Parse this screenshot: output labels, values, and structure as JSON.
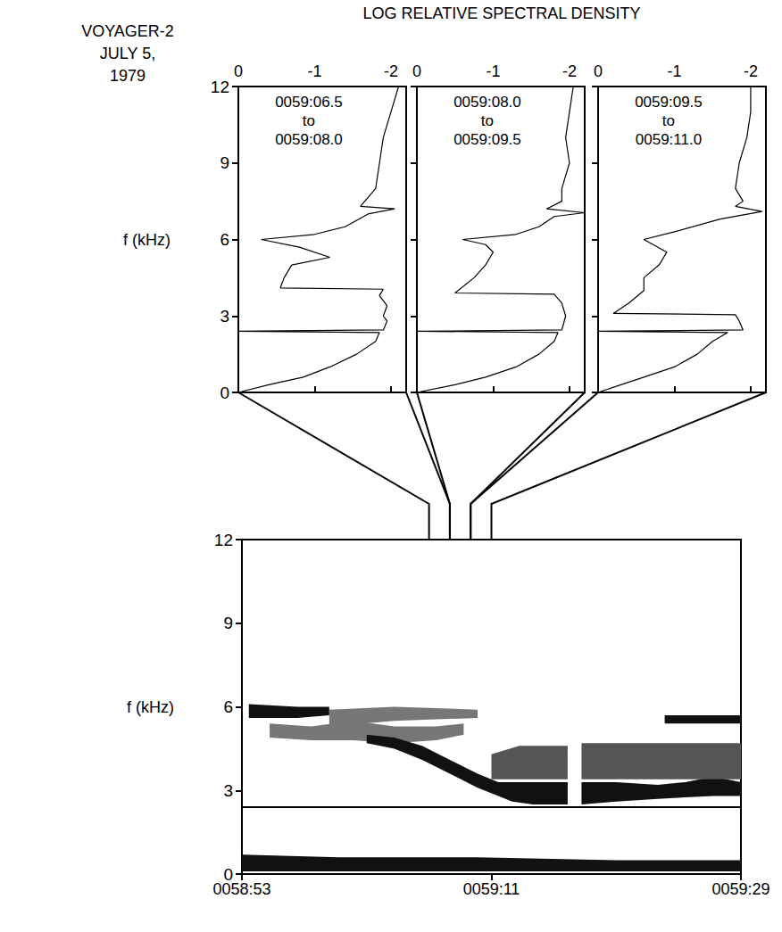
{
  "header": {
    "lines": [
      "VOYAGER-2",
      "JULY 5,",
      "1979"
    ],
    "x_label": "LOG RELATIVE SPECTRAL DENSITY"
  },
  "chart_data": [
    {
      "type": "line",
      "label": [
        "0059:06.5",
        "to",
        "0059:08.0"
      ],
      "interval": [
        66.5,
        68.0
      ],
      "color": "#000000",
      "x": [
        0,
        -0.4,
        -0.85,
        -1.2,
        -1.55,
        -1.8,
        -1.85,
        0,
        -1.9,
        -1.95,
        -1.9,
        -1.95,
        -1.85,
        -1.9,
        -0.55,
        -0.6,
        -0.7,
        -1.2,
        -0.8,
        -0.3,
        -1.0,
        -1.4,
        -1.7,
        -2.05,
        -1.6,
        -1.8,
        -1.85,
        -1.9,
        -2.0,
        -2.1
      ],
      "y": [
        0,
        0.3,
        0.6,
        1.0,
        1.5,
        2.0,
        2.35,
        2.4,
        2.45,
        2.8,
        3.0,
        3.4,
        3.8,
        4.05,
        4.1,
        4.5,
        5.0,
        5.3,
        5.7,
        6.0,
        6.2,
        6.5,
        7.0,
        7.2,
        7.3,
        8.0,
        9.0,
        10.0,
        11.0,
        12.0
      ],
      "xlim": [
        0,
        -2.2
      ],
      "xticks": [
        0,
        -1,
        -2
      ],
      "ylim": [
        0,
        12
      ],
      "yticks": [
        0,
        3,
        6,
        9,
        12
      ],
      "y_label": "f (kHz)",
      "tick_labels": true
    },
    {
      "type": "line",
      "label": [
        "0059:08.0",
        "to",
        "0059:09.5"
      ],
      "interval": [
        68.0,
        69.5
      ],
      "color": "#000000",
      "x": [
        0,
        -0.5,
        -0.9,
        -1.3,
        -1.6,
        -1.8,
        -1.85,
        0,
        -1.9,
        -1.95,
        -1.9,
        -1.8,
        -0.5,
        -0.75,
        -0.9,
        -1.0,
        -0.9,
        -0.6,
        -1.3,
        -1.6,
        -1.8,
        -2.2,
        -1.7,
        -1.9,
        -1.9,
        -2.0,
        -1.95,
        -2.0,
        -2.05
      ],
      "y": [
        0,
        0.3,
        0.6,
        1.0,
        1.5,
        2.0,
        2.35,
        2.4,
        2.45,
        3.0,
        3.5,
        3.85,
        3.9,
        4.5,
        5.0,
        5.5,
        5.8,
        6.0,
        6.2,
        6.5,
        6.9,
        7.05,
        7.2,
        7.5,
        8.0,
        9.0,
        10.0,
        11.0,
        12.0
      ],
      "xlim": [
        0,
        -2.2
      ],
      "xticks": [
        0,
        -1,
        -2
      ],
      "ylim": [
        0,
        12
      ],
      "yticks": [
        0,
        3,
        6,
        9,
        12
      ],
      "tick_labels": "x"
    },
    {
      "type": "line",
      "label": [
        "0059:09.5",
        "to",
        "0059:11.0"
      ],
      "interval": [
        69.5,
        71.0
      ],
      "color": "#000000",
      "x": [
        0,
        -0.3,
        -0.6,
        -1.0,
        -1.3,
        -1.5,
        -1.7,
        0,
        -1.9,
        -1.85,
        -1.8,
        -0.2,
        -0.4,
        -0.6,
        -0.6,
        -0.8,
        -0.9,
        -0.6,
        -1.0,
        -1.6,
        -2.15,
        -1.8,
        -1.9,
        -1.8,
        -1.85,
        -1.95,
        -2.0,
        -2.0
      ],
      "y": [
        0,
        0.3,
        0.6,
        1.0,
        1.5,
        2.0,
        2.35,
        2.4,
        2.45,
        2.8,
        3.05,
        3.1,
        3.5,
        4.0,
        4.5,
        5.0,
        5.5,
        6.0,
        6.3,
        6.8,
        7.1,
        7.3,
        7.5,
        8.0,
        9.0,
        10.0,
        11.0,
        12.0
      ],
      "xlim": [
        0,
        -2.2
      ],
      "xticks": [
        0,
        -1,
        -2
      ],
      "ylim": [
        0,
        12
      ],
      "yticks": [
        0,
        3,
        6,
        9,
        12
      ],
      "tick_labels": "x"
    },
    {
      "type": "spectrogram",
      "y_label": "f (kHz)",
      "xlim": [
        53,
        89
      ],
      "xticks": [
        {
          "value": 53,
          "label": "0058:53"
        },
        {
          "value": 71,
          "label": "0059:11"
        },
        {
          "value": 89,
          "label": "0059:29"
        }
      ],
      "ylim": [
        0,
        12
      ],
      "yticks": [
        0,
        3,
        6,
        9,
        12
      ],
      "bands": [
        {
          "time": [
            53,
            60,
            70,
            80,
            89
          ],
          "low": [
            0.1,
            0.1,
            0.1,
            0.1,
            0.1
          ],
          "high": [
            0.7,
            0.6,
            0.6,
            0.5,
            0.5
          ],
          "color": "#111111"
        },
        {
          "time": [
            53.5,
            57,
            59.3
          ],
          "low": [
            5.6,
            5.6,
            5.7
          ],
          "high": [
            6.1,
            6.0,
            6.0
          ],
          "color": "#111111"
        },
        {
          "time": [
            55,
            58,
            61,
            64,
            67,
            69
          ],
          "low": [
            4.9,
            4.8,
            4.8,
            4.7,
            4.8,
            5.0
          ],
          "high": [
            5.4,
            5.3,
            5.5,
            5.3,
            5.3,
            5.4
          ],
          "color": "#777777"
        },
        {
          "time": [
            59.3,
            64,
            70
          ],
          "low": [
            5.3,
            5.5,
            5.6
          ],
          "high": [
            5.9,
            6.0,
            5.9
          ],
          "color": "#777777"
        },
        {
          "time": [
            62,
            64,
            66,
            68,
            70,
            71.5,
            72.5,
            74,
            76.5
          ],
          "low": [
            4.7,
            4.5,
            4.1,
            3.6,
            3.1,
            2.8,
            2.6,
            2.5,
            2.5
          ],
          "high": [
            5.0,
            4.9,
            4.6,
            4.1,
            3.6,
            3.3,
            3.3,
            3.3,
            3.3
          ],
          "color": "#111111"
        },
        {
          "time": [
            77.5,
            80,
            83,
            85,
            87,
            89
          ],
          "low": [
            2.5,
            2.6,
            2.7,
            2.75,
            2.8,
            2.8
          ],
          "high": [
            3.3,
            3.3,
            3.2,
            3.3,
            3.5,
            3.3
          ],
          "color": "#111111"
        },
        {
          "time": [
            71,
            73,
            76.5
          ],
          "low": [
            3.4,
            3.4,
            3.4
          ],
          "high": [
            4.3,
            4.6,
            4.6
          ],
          "color": "#555555"
        },
        {
          "time": [
            77.5,
            89
          ],
          "low": [
            3.4,
            3.4
          ],
          "high": [
            4.7,
            4.7
          ],
          "color": "#555555"
        },
        {
          "time": [
            83.5,
            89
          ],
          "low": [
            5.4,
            5.4
          ],
          "high": [
            5.7,
            5.7
          ],
          "color": "#111111"
        }
      ],
      "lines": [
        {
          "y": 2.4,
          "x": [
            53,
            89
          ],
          "color": "#000000"
        }
      ]
    }
  ]
}
